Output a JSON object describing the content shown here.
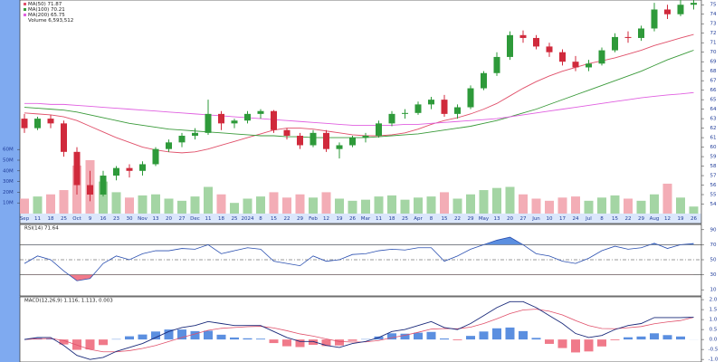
{
  "chart_data": [
    {
      "type": "candlestick",
      "categories": [
        "Sep",
        "11",
        "18",
        "25",
        "Oct",
        "9",
        "16",
        "23",
        "30",
        "Nov",
        "13",
        "20",
        "27",
        "Dec",
        "11",
        "18",
        "25",
        "2024",
        "8",
        "15",
        "22",
        "29",
        "Feb",
        "12",
        "19",
        "26",
        "Mar",
        "11",
        "18",
        "25",
        "Apr",
        "8",
        "15",
        "22",
        "29",
        "May",
        "13",
        "20",
        "27",
        "Jun",
        "10",
        "17",
        "24",
        "Jul",
        "8",
        "15",
        "22",
        "29",
        "Aug",
        "12",
        "19",
        "26"
      ],
      "open": [
        63,
        62,
        63,
        62.5,
        59.5,
        56,
        55,
        57,
        57.8,
        57.5,
        58.2,
        59.8,
        60.5,
        61.2,
        61.5,
        63.5,
        62.5,
        62.8,
        63.5,
        63.8,
        61.8,
        61.2,
        60.2,
        61.5,
        59.8,
        60.2,
        61,
        61.2,
        62.5,
        63.5,
        63.6,
        64.5,
        65,
        63.5,
        64.2,
        66.2,
        67.8,
        69.5,
        71.8,
        71.5,
        70.6,
        70,
        69,
        68.4,
        68.8,
        70.2,
        71.6,
        71.5,
        72.5,
        74.5,
        74,
        75
      ],
      "high": [
        63.5,
        63.2,
        63.4,
        62.8,
        60,
        57.5,
        57.5,
        58,
        58.2,
        58.5,
        60,
        60.8,
        61.5,
        62,
        65,
        63.8,
        63,
        63.8,
        64,
        63.9,
        62,
        61.5,
        61.8,
        61.8,
        60.5,
        61.2,
        61.5,
        62.8,
        63.8,
        64,
        64.8,
        65.3,
        65.5,
        64.5,
        66.5,
        68,
        70,
        72.2,
        72.3,
        71.8,
        71,
        70.3,
        69.6,
        69.2,
        70.5,
        72,
        72.2,
        72.8,
        75.2,
        75,
        75.5,
        75.8
      ],
      "low": [
        61.5,
        61.8,
        62,
        59,
        55,
        54.3,
        54.8,
        56.5,
        56.8,
        57,
        58,
        59.5,
        60,
        60.8,
        61.3,
        61.8,
        62,
        62.5,
        63,
        61.5,
        60.8,
        59.8,
        60,
        59.5,
        58.8,
        60,
        60.5,
        61,
        62.2,
        63,
        63.4,
        64,
        63.2,
        63,
        64,
        66,
        67.5,
        69.2,
        71,
        70.3,
        69.5,
        68.6,
        68,
        68,
        68.6,
        70,
        71,
        71.2,
        72.2,
        73.5,
        73.8,
        74.5
      ],
      "close": [
        62,
        63,
        62.5,
        59.5,
        56,
        55,
        57,
        57.8,
        57.5,
        58.2,
        59.8,
        60.5,
        61.2,
        61.5,
        63.5,
        62.5,
        62.8,
        63.5,
        63.8,
        61.8,
        61.2,
        60.2,
        61.5,
        59.8,
        60.2,
        61,
        61.2,
        62.5,
        63.5,
        63.6,
        64.5,
        65,
        63.5,
        64.2,
        66.2,
        67.8,
        69.5,
        71.8,
        71.5,
        70.6,
        70,
        69,
        68.4,
        68.8,
        70.2,
        71.6,
        71.5,
        72.5,
        74.5,
        74,
        75,
        75.2
      ],
      "color_up": "#2e9a3a",
      "color_down": "#d02a3c",
      "series": [
        {
          "name": "MA(50) 71.87",
          "color": "#e0506a",
          "values": [
            63.6,
            63.5,
            63.4,
            63.2,
            62.8,
            62.2,
            61.6,
            61.0,
            60.5,
            60.0,
            59.7,
            59.5,
            59.4,
            59.5,
            59.8,
            60.2,
            60.6,
            61.0,
            61.4,
            61.8,
            62.0,
            62.0,
            61.9,
            61.7,
            61.5,
            61.3,
            61.2,
            61.2,
            61.3,
            61.5,
            61.9,
            62.4,
            62.8,
            63.1,
            63.5,
            64.0,
            64.6,
            65.4,
            66.2,
            66.9,
            67.5,
            68.0,
            68.4,
            68.8,
            69.1,
            69.4,
            69.8,
            70.2,
            70.7,
            71.1,
            71.5,
            71.87
          ]
        },
        {
          "name": "MA(100) 70.21",
          "color": "#3a9a3a",
          "values": [
            64.2,
            64.1,
            64.0,
            63.9,
            63.7,
            63.4,
            63.1,
            62.8,
            62.5,
            62.3,
            62.1,
            61.9,
            61.8,
            61.7,
            61.6,
            61.5,
            61.4,
            61.3,
            61.2,
            61.2,
            61.1,
            61.1,
            61.0,
            61.0,
            61.0,
            61.0,
            61.0,
            61.1,
            61.2,
            61.3,
            61.4,
            61.6,
            61.8,
            62.0,
            62.2,
            62.5,
            62.8,
            63.2,
            63.6,
            64.0,
            64.5,
            65.0,
            65.5,
            66.0,
            66.5,
            67.0,
            67.5,
            68.0,
            68.6,
            69.2,
            69.7,
            70.21
          ]
        },
        {
          "name": "MA(200) 65.75",
          "color": "#e060e0",
          "values": [
            64.6,
            64.6,
            64.5,
            64.5,
            64.4,
            64.3,
            64.2,
            64.1,
            64.0,
            63.9,
            63.8,
            63.7,
            63.6,
            63.5,
            63.4,
            63.3,
            63.2,
            63.1,
            63.0,
            62.9,
            62.8,
            62.7,
            62.6,
            62.5,
            62.4,
            62.3,
            62.3,
            62.3,
            62.3,
            62.4,
            62.4,
            62.5,
            62.6,
            62.7,
            62.8,
            62.9,
            63.0,
            63.2,
            63.4,
            63.6,
            63.8,
            64.0,
            64.2,
            64.4,
            64.6,
            64.8,
            65.0,
            65.2,
            65.35,
            65.5,
            65.6,
            65.75
          ]
        }
      ],
      "ylim": [
        53,
        75.5
      ],
      "yticks": [
        54,
        55,
        56,
        57,
        58,
        59,
        60,
        61,
        62,
        63,
        64,
        65,
        66,
        67,
        68,
        69,
        70,
        71,
        72,
        73,
        74,
        75
      ]
    },
    {
      "type": "volume",
      "name": "Volume 6,593,512",
      "values": [
        14000000,
        16000000,
        18000000,
        22000000,
        45000000,
        50000000,
        30000000,
        20000000,
        15000000,
        17000000,
        18000000,
        14000000,
        12000000,
        16000000,
        25000000,
        18000000,
        10000000,
        14000000,
        16000000,
        20000000,
        15000000,
        18000000,
        15000000,
        20000000,
        14000000,
        12000000,
        13000000,
        16000000,
        17000000,
        13000000,
        15000000,
        16000000,
        20000000,
        14000000,
        18000000,
        22000000,
        24000000,
        25000000,
        18000000,
        14000000,
        12000000,
        15000000,
        16000000,
        12000000,
        15000000,
        17000000,
        14000000,
        12000000,
        18000000,
        28000000,
        15000000,
        6593512
      ],
      "color_up": "#9ad09a",
      "color_down": "#f2a4ae",
      "ylim": [
        0,
        200000000
      ],
      "yticks": [
        {
          "value": 10000000,
          "label": "10M"
        },
        {
          "value": 20000000,
          "label": "20M"
        },
        {
          "value": 30000000,
          "label": "30M"
        },
        {
          "value": 40000000,
          "label": "40M"
        },
        {
          "value": 50000000,
          "label": "50M"
        },
        {
          "value": 60000000,
          "label": "60M"
        }
      ]
    },
    {
      "type": "rsi",
      "name": "RSI(14) 71.64",
      "color": "#2a4fb0",
      "values": [
        45,
        55,
        50,
        35,
        22,
        25,
        45,
        55,
        50,
        58,
        62,
        62,
        65,
        64,
        70,
        58,
        62,
        66,
        64,
        48,
        45,
        42,
        55,
        48,
        50,
        57,
        58,
        62,
        64,
        63,
        66,
        66,
        48,
        55,
        64,
        70,
        76,
        80,
        70,
        58,
        55,
        48,
        45,
        52,
        62,
        68,
        64,
        66,
        72,
        65,
        70,
        71.64
      ],
      "hlines": [
        {
          "value": 70,
          "style": "solid"
        },
        {
          "value": 50,
          "style": "dashed"
        },
        {
          "value": 30,
          "style": "solid"
        }
      ],
      "fill_above": {
        "value": 70,
        "color": "#5b8fe0"
      },
      "fill_below": {
        "value": 30,
        "color": "#f07a8a"
      },
      "ylim": [
        3,
        97
      ],
      "yticks": [
        10,
        30,
        50,
        70,
        90
      ]
    },
    {
      "type": "macd",
      "title": "MACD(12,26,9) 1.116, 1.113, 0.003",
      "values": [
        0,
        0.1,
        0.1,
        -0.3,
        -0.8,
        -1.0,
        -0.9,
        -0.6,
        -0.4,
        -0.2,
        0.1,
        0.4,
        0.6,
        0.7,
        0.9,
        0.8,
        0.7,
        0.7,
        0.7,
        0.4,
        0.1,
        -0.1,
        -0.1,
        -0.3,
        -0.4,
        -0.2,
        -0.1,
        0.1,
        0.4,
        0.5,
        0.7,
        0.9,
        0.6,
        0.5,
        0.8,
        1.2,
        1.6,
        1.9,
        1.9,
        1.6,
        1.2,
        0.8,
        0.3,
        0.1,
        0.2,
        0.5,
        0.7,
        0.8,
        1.1,
        1.1,
        1.1,
        1.116
      ],
      "signal": [
        0,
        0.03,
        0.05,
        -0.05,
        -0.28,
        -0.5,
        -0.62,
        -0.62,
        -0.56,
        -0.45,
        -0.3,
        -0.1,
        0.1,
        0.28,
        0.46,
        0.56,
        0.6,
        0.64,
        0.66,
        0.58,
        0.44,
        0.28,
        0.17,
        0.03,
        -0.1,
        -0.13,
        -0.12,
        -0.05,
        0.09,
        0.21,
        0.36,
        0.52,
        0.55,
        0.54,
        0.62,
        0.8,
        1.04,
        1.3,
        1.48,
        1.52,
        1.42,
        1.23,
        0.95,
        0.7,
        0.55,
        0.54,
        0.59,
        0.65,
        0.79,
        0.88,
        0.95,
        1.113
      ],
      "hist": [
        0,
        0.07,
        0.05,
        -0.25,
        -0.52,
        -0.5,
        -0.28,
        0.02,
        0.16,
        0.25,
        0.4,
        0.5,
        0.5,
        0.42,
        0.44,
        0.24,
        0.1,
        0.06,
        0.04,
        -0.18,
        -0.34,
        -0.38,
        -0.27,
        -0.33,
        -0.3,
        -0.07,
        0.02,
        0.15,
        0.31,
        0.29,
        0.34,
        0.38,
        0.05,
        -0.04,
        0.18,
        0.4,
        0.56,
        0.6,
        0.42,
        0.08,
        -0.22,
        -0.43,
        -0.65,
        -0.6,
        -0.35,
        -0.04,
        0.11,
        0.15,
        0.31,
        0.22,
        0.15,
        0.003
      ],
      "macd_color": "#1a2a7a",
      "signal_color": "#e0506a",
      "hist_up": "#5b8fe0",
      "hist_down": "#f07a8a",
      "ylim": [
        -1.13,
        2.14
      ],
      "yticks": [
        {
          "value": 2,
          "label": "2.0"
        },
        {
          "value": 1.5,
          "label": "1.5"
        },
        {
          "value": 1,
          "label": "1.0"
        },
        {
          "value": 0.5,
          "label": "0.5"
        },
        {
          "value": 0,
          "label": "0.0"
        },
        {
          "value": -0.5,
          "label": "-0.5"
        },
        {
          "value": -1,
          "label": "-1.0"
        }
      ]
    }
  ]
}
